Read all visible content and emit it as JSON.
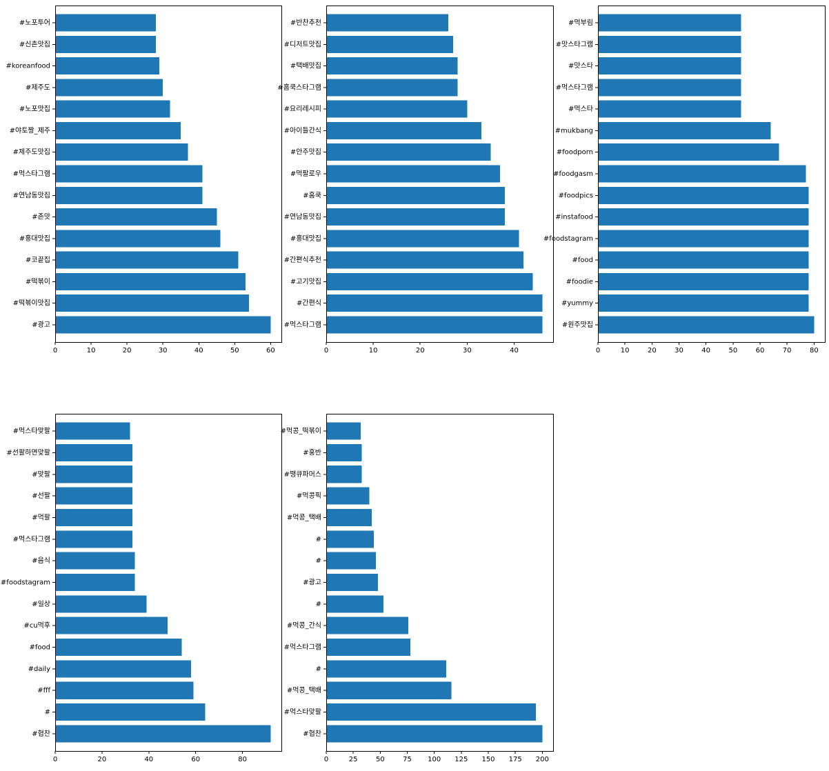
{
  "colors": {
    "bar": "#1f77b4",
    "axis": "#000000",
    "background": "#ffffff"
  },
  "chart_data": [
    {
      "type": "bar",
      "orientation": "horizontal",
      "categories": [
        "#광고",
        "#떡볶이맛집",
        "#떡볶이",
        "#코끝집",
        "#홍대맛집",
        "#존맛",
        "#연남동맛집",
        "#먹스타그램",
        "#제주도맛집",
        "#야토짱_제주",
        "#노포맛집",
        "#제주도",
        "#koreanfood",
        "#신촌맛집",
        "#노포투어"
      ],
      "values": [
        60,
        54,
        53,
        51,
        46,
        45,
        41,
        41,
        37,
        35,
        32,
        30,
        29,
        28,
        28
      ],
      "xlim": [
        0,
        63
      ],
      "xticks": [
        "0",
        "10",
        "20",
        "30",
        "40",
        "50",
        "60"
      ],
      "grid": false
    },
    {
      "type": "bar",
      "orientation": "horizontal",
      "categories": [
        "#먹스타그램",
        "#간편식",
        "#고기맛집",
        "#간편식추천",
        "#홍대맛집",
        "#연남동맛집",
        "#홈쿡",
        "#먹팔로우",
        "#안주맛집",
        "#아이들간식",
        "#요리레시피",
        "#홈쿡스타그램",
        "#택배맛집",
        "#디저트맛집",
        "#반찬추천"
      ],
      "values": [
        46,
        46,
        44,
        42,
        41,
        38,
        38,
        37,
        35,
        33,
        30,
        28,
        28,
        27,
        26
      ],
      "xlim": [
        0,
        48.3
      ],
      "xticks": [
        "0",
        "10",
        "20",
        "30",
        "40"
      ],
      "grid": false
    },
    {
      "type": "bar",
      "orientation": "horizontal",
      "categories": [
        "#원주맛집",
        "#yummy",
        "#foodie",
        "#food",
        "#foodstagram",
        "#instafood",
        "#foodpics",
        "#foodgasm",
        "#foodporn",
        "#mukbang",
        "#먹스타",
        "#먹스타그램",
        "#맛스타",
        "#맛스타그램",
        "#먹부림"
      ],
      "values": [
        80,
        78,
        78,
        78,
        78,
        78,
        78,
        77,
        67,
        64,
        53,
        53,
        53,
        53,
        53
      ],
      "xlim": [
        0,
        84
      ],
      "xticks": [
        "0",
        "10",
        "20",
        "30",
        "40",
        "50",
        "60",
        "70",
        "80"
      ],
      "grid": false
    },
    {
      "type": "bar",
      "orientation": "horizontal",
      "categories": [
        "#협찬",
        "#",
        "#fff",
        "#daily",
        "#food",
        "#cu먹후",
        "#일상",
        "#foodstagram",
        "#음식",
        "#먹스타그램",
        "#먹팔",
        "#선팔",
        "#맞팔",
        "#선팔하면맞팔",
        "#먹스타맞팔"
      ],
      "values": [
        92,
        64,
        59,
        58,
        54,
        48,
        39,
        34,
        34,
        33,
        33,
        33,
        33,
        33,
        32
      ],
      "xlim": [
        0,
        96.6
      ],
      "xticks": [
        "0",
        "20",
        "40",
        "60",
        "80"
      ],
      "grid": false
    },
    {
      "type": "bar",
      "orientation": "horizontal",
      "categories": [
        "#협찬",
        "#먹스타맞팔",
        "#먹콩_택배",
        "#",
        "#먹스타그램",
        "#먹콩_간식",
        "#",
        "#광고",
        "#",
        "#",
        "#먹콩_택배",
        "#먹콩픽",
        "#땡큐파머스",
        "#홍반",
        "#먹콩_떡볶이"
      ],
      "values": [
        200,
        194,
        116,
        111,
        78,
        76,
        53,
        48,
        46,
        44,
        42,
        40,
        33,
        33,
        32
      ],
      "xlim": [
        0,
        210
      ],
      "xticks": [
        "0",
        "25",
        "50",
        "75",
        "100",
        "125",
        "150",
        "175",
        "200"
      ],
      "grid": false
    }
  ]
}
